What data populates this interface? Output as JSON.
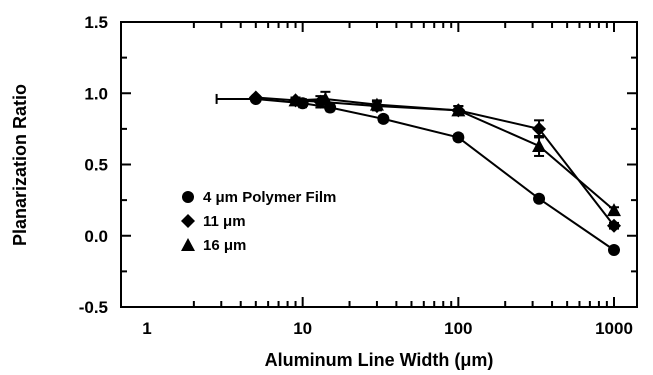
{
  "chart_data": {
    "type": "scatter",
    "title": "",
    "xlabel": "Aluminum Line Width (μm)",
    "ylabel": "Planarization Ratio",
    "x_scale": "log",
    "xlim": [
      1,
      1000
    ],
    "ylim": [
      -0.5,
      1.5
    ],
    "x_tick_labels": [
      "1",
      "10",
      "100",
      "1000"
    ],
    "y_tick_labels": [
      "1.5",
      "1.0",
      "0.5",
      "0.0",
      "-0.5"
    ],
    "grid": false,
    "legend_position": "lower-left",
    "series": [
      {
        "name": "4 μm Polymer Film",
        "marker": "circle",
        "x": [
          5,
          10,
          15,
          33,
          100,
          330,
          1000
        ],
        "y": [
          0.96,
          0.93,
          0.9,
          0.82,
          0.69,
          0.26,
          -0.1
        ],
        "xerr": [
          [
            2.2,
            0.5,
            0.7,
            0,
            0,
            0,
            0
          ],
          [
            0,
            0.5,
            0.7,
            0,
            0,
            0,
            0
          ]
        ],
        "yerr": [
          0,
          0.02,
          0.02,
          0.02,
          0.02,
          0.02,
          0.01
        ]
      },
      {
        "name": "11 μm",
        "marker": "diamond",
        "x": [
          5,
          9,
          13,
          30,
          100,
          330,
          1000
        ],
        "y": [
          0.97,
          0.95,
          0.94,
          0.91,
          0.88,
          0.75,
          0.07
        ],
        "xerr": [
          [
            0,
            0,
            0,
            0,
            0,
            0,
            0
          ],
          [
            0,
            0,
            0,
            0,
            0,
            0,
            0
          ]
        ],
        "yerr": [
          0,
          0.02,
          0.04,
          0.03,
          0.03,
          0.06,
          0.02
        ]
      },
      {
        "name": "16 μm",
        "marker": "triangle",
        "x": [
          9,
          14,
          30,
          100,
          330,
          1000
        ],
        "y": [
          0.95,
          0.96,
          0.92,
          0.88,
          0.63,
          0.18
        ],
        "xerr": [
          [
            0,
            0,
            0,
            0,
            0,
            0
          ],
          [
            0,
            0,
            0,
            0,
            0,
            0
          ]
        ],
        "yerr": [
          0.02,
          0.05,
          0.03,
          0.03,
          0.07,
          0.02
        ]
      }
    ]
  }
}
